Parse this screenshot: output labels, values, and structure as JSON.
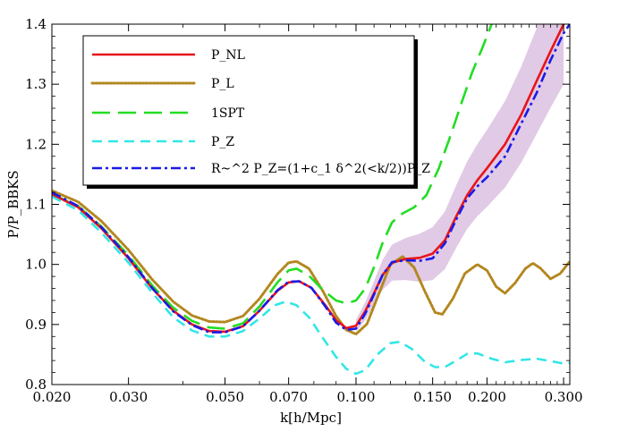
{
  "chart_data": {
    "type": "line",
    "title": "",
    "xlabel": "k[h/Mpc]",
    "ylabel": "P/P_BBKS",
    "xscale": "log",
    "xlim": [
      0.02,
      0.31
    ],
    "ylim": [
      0.8,
      1.4
    ],
    "x_ticks": [
      {
        "value": 0.02,
        "label": "0.020"
      },
      {
        "value": 0.03,
        "label": "0.030"
      },
      {
        "value": 0.05,
        "label": "0.050"
      },
      {
        "value": 0.07,
        "label": "0.070"
      },
      {
        "value": 0.1,
        "label": "0.100"
      },
      {
        "value": 0.15,
        "label": "0.150"
      },
      {
        "value": 0.2,
        "label": "0.200"
      },
      {
        "value": 0.3,
        "label": "0.300"
      }
    ],
    "y_ticks": [
      {
        "value": 0.8,
        "label": "0.8"
      },
      {
        "value": 0.9,
        "label": "0.9"
      },
      {
        "value": 1.0,
        "label": "1.0"
      },
      {
        "value": 1.1,
        "label": "1.1"
      },
      {
        "value": 1.2,
        "label": "1.2"
      },
      {
        "value": 1.3,
        "label": "1.3"
      },
      {
        "value": 1.4,
        "label": "1.4"
      }
    ],
    "legend_position": "top-left",
    "series": [
      {
        "name": "P_NL",
        "color": "#e8141b",
        "style": "solid",
        "points": [
          [
            0.02,
            1.117
          ],
          [
            0.023,
            1.095
          ],
          [
            0.026,
            1.06
          ],
          [
            0.03,
            1.01
          ],
          [
            0.034,
            0.96
          ],
          [
            0.038,
            0.923
          ],
          [
            0.042,
            0.9
          ],
          [
            0.046,
            0.889
          ],
          [
            0.05,
            0.888
          ],
          [
            0.055,
            0.897
          ],
          [
            0.06,
            0.923
          ],
          [
            0.066,
            0.956
          ],
          [
            0.07,
            0.97
          ],
          [
            0.074,
            0.972
          ],
          [
            0.079,
            0.961
          ],
          [
            0.085,
            0.932
          ],
          [
            0.09,
            0.907
          ],
          [
            0.095,
            0.894
          ],
          [
            0.1,
            0.898
          ],
          [
            0.105,
            0.922
          ],
          [
            0.11,
            0.952
          ],
          [
            0.115,
            0.982
          ],
          [
            0.121,
            1.003
          ],
          [
            0.13,
            1.009
          ],
          [
            0.14,
            1.011
          ],
          [
            0.15,
            1.018
          ],
          [
            0.16,
            1.04
          ],
          [
            0.17,
            1.08
          ],
          [
            0.18,
            1.115
          ],
          [
            0.19,
            1.14
          ],
          [
            0.2,
            1.16
          ],
          [
            0.22,
            1.2
          ],
          [
            0.24,
            1.25
          ],
          [
            0.26,
            1.305
          ],
          [
            0.28,
            1.355
          ],
          [
            0.3,
            1.4
          ]
        ]
      },
      {
        "name": "P_L",
        "color": "#b3871f",
        "style": "dotted",
        "points": [
          [
            0.02,
            1.123
          ],
          [
            0.023,
            1.104
          ],
          [
            0.026,
            1.072
          ],
          [
            0.03,
            1.024
          ],
          [
            0.034,
            0.975
          ],
          [
            0.038,
            0.938
          ],
          [
            0.042,
            0.915
          ],
          [
            0.046,
            0.905
          ],
          [
            0.05,
            0.904
          ],
          [
            0.055,
            0.914
          ],
          [
            0.06,
            0.943
          ],
          [
            0.066,
            0.984
          ],
          [
            0.07,
            1.003
          ],
          [
            0.073,
            1.005
          ],
          [
            0.078,
            0.993
          ],
          [
            0.084,
            0.955
          ],
          [
            0.09,
            0.914
          ],
          [
            0.095,
            0.891
          ],
          [
            0.1,
            0.884
          ],
          [
            0.106,
            0.901
          ],
          [
            0.113,
            0.952
          ],
          [
            0.12,
            1.0
          ],
          [
            0.128,
            1.013
          ],
          [
            0.136,
            0.995
          ],
          [
            0.144,
            0.955
          ],
          [
            0.152,
            0.92
          ],
          [
            0.158,
            0.917
          ],
          [
            0.167,
            0.943
          ],
          [
            0.178,
            0.985
          ],
          [
            0.19,
            1.0
          ],
          [
            0.2,
            0.99
          ],
          [
            0.21,
            0.963
          ],
          [
            0.22,
            0.952
          ],
          [
            0.232,
            0.969
          ],
          [
            0.245,
            0.993
          ],
          [
            0.255,
            1.002
          ],
          [
            0.265,
            0.994
          ],
          [
            0.28,
            0.976
          ],
          [
            0.295,
            0.985
          ],
          [
            0.31,
            1.005
          ]
        ]
      },
      {
        "name": "1SPT",
        "color": "#22dd22",
        "style": "dashed",
        "points": [
          [
            0.02,
            1.117
          ],
          [
            0.023,
            1.097
          ],
          [
            0.026,
            1.063
          ],
          [
            0.03,
            1.015
          ],
          [
            0.034,
            0.965
          ],
          [
            0.038,
            0.928
          ],
          [
            0.042,
            0.906
          ],
          [
            0.046,
            0.895
          ],
          [
            0.05,
            0.893
          ],
          [
            0.055,
            0.902
          ],
          [
            0.06,
            0.93
          ],
          [
            0.066,
            0.97
          ],
          [
            0.07,
            0.99
          ],
          [
            0.073,
            0.993
          ],
          [
            0.078,
            0.981
          ],
          [
            0.084,
            0.957
          ],
          [
            0.09,
            0.94
          ],
          [
            0.095,
            0.935
          ],
          [
            0.1,
            0.94
          ],
          [
            0.105,
            0.96
          ],
          [
            0.11,
            0.995
          ],
          [
            0.115,
            1.035
          ],
          [
            0.121,
            1.07
          ],
          [
            0.128,
            1.085
          ],
          [
            0.136,
            1.095
          ],
          [
            0.145,
            1.115
          ],
          [
            0.155,
            1.16
          ],
          [
            0.165,
            1.215
          ],
          [
            0.175,
            1.27
          ],
          [
            0.185,
            1.32
          ],
          [
            0.195,
            1.36
          ],
          [
            0.205,
            1.4
          ]
        ]
      },
      {
        "name": "P_Z",
        "color": "#33e6e6",
        "style": "short-dashed",
        "points": [
          [
            0.02,
            1.113
          ],
          [
            0.023,
            1.09
          ],
          [
            0.026,
            1.053
          ],
          [
            0.03,
            1.003
          ],
          [
            0.034,
            0.953
          ],
          [
            0.038,
            0.912
          ],
          [
            0.042,
            0.89
          ],
          [
            0.046,
            0.88
          ],
          [
            0.05,
            0.88
          ],
          [
            0.055,
            0.889
          ],
          [
            0.06,
            0.91
          ],
          [
            0.065,
            0.932
          ],
          [
            0.069,
            0.938
          ],
          [
            0.073,
            0.932
          ],
          [
            0.078,
            0.912
          ],
          [
            0.084,
            0.877
          ],
          [
            0.09,
            0.846
          ],
          [
            0.095,
            0.826
          ],
          [
            0.1,
            0.818
          ],
          [
            0.105,
            0.824
          ],
          [
            0.112,
            0.85
          ],
          [
            0.12,
            0.869
          ],
          [
            0.126,
            0.871
          ],
          [
            0.134,
            0.86
          ],
          [
            0.144,
            0.838
          ],
          [
            0.152,
            0.829
          ],
          [
            0.16,
            0.829
          ],
          [
            0.17,
            0.84
          ],
          [
            0.18,
            0.851
          ],
          [
            0.19,
            0.852
          ],
          [
            0.205,
            0.843
          ],
          [
            0.22,
            0.837
          ],
          [
            0.24,
            0.841
          ],
          [
            0.26,
            0.843
          ],
          [
            0.28,
            0.839
          ],
          [
            0.3,
            0.835
          ],
          [
            0.31,
            0.836
          ]
        ]
      },
      {
        "name": "R~^2 P_Z=(1+c_1 δ^2(<k/2))P_Z",
        "color": "#1a1ae6",
        "style": "dash-dot",
        "points": [
          [
            0.02,
            1.12
          ],
          [
            0.023,
            1.097
          ],
          [
            0.026,
            1.062
          ],
          [
            0.03,
            1.012
          ],
          [
            0.034,
            0.961
          ],
          [
            0.038,
            0.922
          ],
          [
            0.042,
            0.899
          ],
          [
            0.046,
            0.887
          ],
          [
            0.05,
            0.887
          ],
          [
            0.055,
            0.897
          ],
          [
            0.06,
            0.923
          ],
          [
            0.066,
            0.957
          ],
          [
            0.07,
            0.971
          ],
          [
            0.074,
            0.972
          ],
          [
            0.079,
            0.961
          ],
          [
            0.085,
            0.93
          ],
          [
            0.09,
            0.903
          ],
          [
            0.095,
            0.891
          ],
          [
            0.1,
            0.893
          ],
          [
            0.105,
            0.918
          ],
          [
            0.11,
            0.95
          ],
          [
            0.115,
            0.982
          ],
          [
            0.121,
            1.004
          ],
          [
            0.13,
            1.007
          ],
          [
            0.14,
            1.006
          ],
          [
            0.15,
            1.01
          ],
          [
            0.16,
            1.035
          ],
          [
            0.17,
            1.075
          ],
          [
            0.18,
            1.11
          ],
          [
            0.19,
            1.13
          ],
          [
            0.2,
            1.145
          ],
          [
            0.22,
            1.18
          ],
          [
            0.24,
            1.235
          ],
          [
            0.26,
            1.285
          ],
          [
            0.28,
            1.34
          ],
          [
            0.3,
            1.385
          ],
          [
            0.31,
            1.4
          ]
        ]
      }
    ],
    "error_band": {
      "color": "#d7b8dc",
      "points": [
        [
          0.1,
          0.898,
          0.01
        ],
        [
          0.105,
          0.922,
          0.015
        ],
        [
          0.11,
          0.952,
          0.02
        ],
        [
          0.115,
          0.982,
          0.025
        ],
        [
          0.121,
          1.003,
          0.03
        ],
        [
          0.13,
          1.009,
          0.035
        ],
        [
          0.14,
          1.011,
          0.04
        ],
        [
          0.15,
          1.018,
          0.044
        ],
        [
          0.16,
          1.04,
          0.048
        ],
        [
          0.17,
          1.08,
          0.052
        ],
        [
          0.18,
          1.115,
          0.056
        ],
        [
          0.19,
          1.14,
          0.06
        ],
        [
          0.2,
          1.16,
          0.064
        ],
        [
          0.22,
          1.2,
          0.072
        ],
        [
          0.24,
          1.25,
          0.08
        ],
        [
          0.26,
          1.305,
          0.088
        ],
        [
          0.28,
          1.355,
          0.094
        ],
        [
          0.3,
          1.4,
          0.1
        ]
      ]
    }
  }
}
